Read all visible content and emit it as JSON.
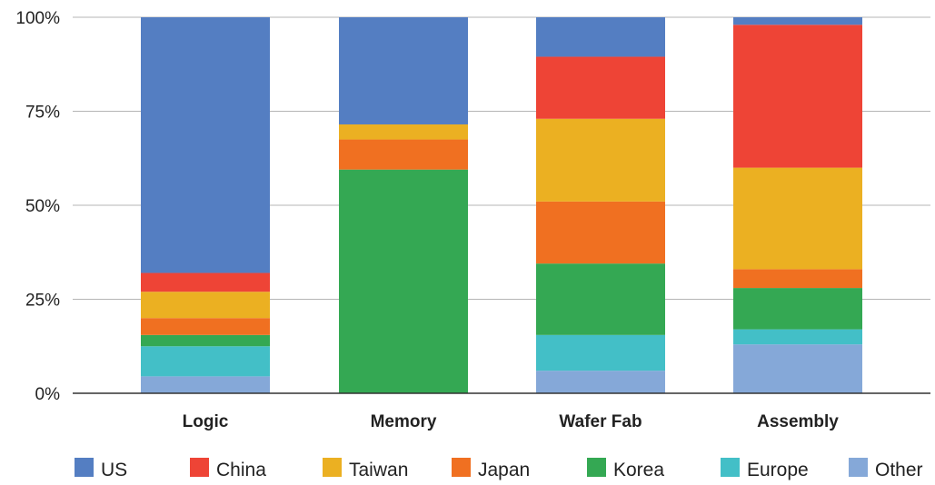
{
  "chart_data": {
    "type": "bar",
    "stacked": true,
    "categories": [
      "Logic",
      "Memory",
      "Wafer Fab",
      "Assembly"
    ],
    "y_ticks": [
      "0%",
      "25%",
      "50%",
      "75%",
      "100%"
    ],
    "ylim": [
      0,
      100
    ],
    "grid": true,
    "legend_position": "bottom",
    "series": [
      {
        "name": "Other",
        "color": "#85a8d8",
        "values": [
          4.5,
          0,
          6,
          13
        ]
      },
      {
        "name": "Europe",
        "color": "#43bfc7",
        "values": [
          8,
          0,
          9.5,
          4
        ]
      },
      {
        "name": "Korea",
        "color": "#34a853",
        "values": [
          3,
          59.5,
          19,
          11
        ]
      },
      {
        "name": "Japan",
        "color": "#f07021",
        "values": [
          4.5,
          8,
          16.5,
          5
        ]
      },
      {
        "name": "Taiwan",
        "color": "#ebb022",
        "values": [
          7,
          4,
          22,
          27
        ]
      },
      {
        "name": "China",
        "color": "#ee4436",
        "values": [
          5,
          0,
          16.5,
          38
        ]
      },
      {
        "name": "US",
        "color": "#547ec2",
        "values": [
          68,
          28.5,
          10.5,
          2
        ]
      }
    ],
    "legend_order": [
      "US",
      "China",
      "Taiwan",
      "Japan",
      "Korea",
      "Europe",
      "Other"
    ]
  }
}
